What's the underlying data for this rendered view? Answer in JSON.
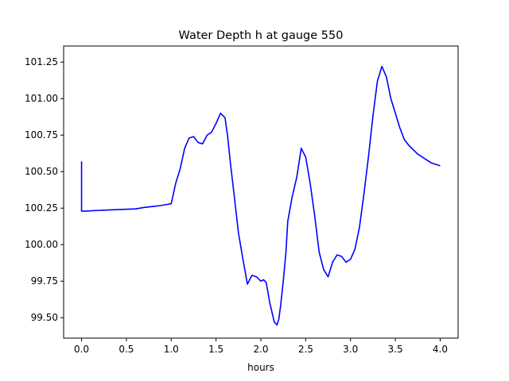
{
  "chart_data": {
    "type": "line",
    "title": "Water Depth h at gauge 550",
    "xlabel": "hours",
    "ylabel": "",
    "xlim": [
      -0.2,
      4.2
    ],
    "ylim": [
      99.36,
      101.36
    ],
    "grid": false,
    "xticks": [
      0.0,
      0.5,
      1.0,
      1.5,
      2.0,
      2.5,
      3.0,
      3.5,
      4.0
    ],
    "xtick_labels": [
      "0.0",
      "0.5",
      "1.0",
      "1.5",
      "2.0",
      "2.5",
      "3.0",
      "3.5",
      "4.0"
    ],
    "yticks": [
      99.5,
      99.75,
      100.0,
      100.25,
      100.5,
      100.75,
      101.0,
      101.25
    ],
    "ytick_labels": [
      "99.50",
      "99.75",
      "100.00",
      "100.25",
      "100.50",
      "100.75",
      "101.00",
      "101.25"
    ],
    "series": [
      {
        "color": "#0000ff",
        "x": [
          0.0,
          0.0,
          0.0,
          0.05,
          0.2,
          0.4,
          0.6,
          0.7,
          0.85,
          0.95,
          1.0,
          1.05,
          1.1,
          1.15,
          1.2,
          1.25,
          1.3,
          1.35,
          1.4,
          1.45,
          1.5,
          1.55,
          1.6,
          1.63,
          1.66,
          1.7,
          1.75,
          1.8,
          1.85,
          1.9,
          1.95,
          2.0,
          2.03,
          2.06,
          2.1,
          2.15,
          2.18,
          2.2,
          2.22,
          2.25,
          2.28,
          2.3,
          2.35,
          2.4,
          2.45,
          2.5,
          2.55,
          2.6,
          2.65,
          2.7,
          2.75,
          2.8,
          2.85,
          2.9,
          2.95,
          3.0,
          3.05,
          3.1,
          3.15,
          3.2,
          3.25,
          3.3,
          3.35,
          3.4,
          3.45,
          3.5,
          3.55,
          3.6,
          3.65,
          3.7,
          3.75,
          3.8,
          3.85,
          3.9,
          3.95,
          4.0
        ],
        "y": [
          100.57,
          100.4,
          100.23,
          100.23,
          100.235,
          100.24,
          100.245,
          100.255,
          100.265,
          100.275,
          100.28,
          100.42,
          100.52,
          100.66,
          100.73,
          100.74,
          100.7,
          100.69,
          100.75,
          100.77,
          100.83,
          100.9,
          100.87,
          100.74,
          100.56,
          100.35,
          100.08,
          99.9,
          99.73,
          99.79,
          99.78,
          99.75,
          99.76,
          99.74,
          99.6,
          99.47,
          99.45,
          99.49,
          99.58,
          99.75,
          99.95,
          100.16,
          100.33,
          100.46,
          100.66,
          100.6,
          100.42,
          100.2,
          99.95,
          99.83,
          99.78,
          99.88,
          99.93,
          99.92,
          99.88,
          99.9,
          99.97,
          100.12,
          100.35,
          100.6,
          100.88,
          101.12,
          101.22,
          101.15,
          101.0,
          100.9,
          100.8,
          100.72,
          100.68,
          100.65,
          100.62,
          100.6,
          100.58,
          100.56,
          100.55,
          100.54
        ]
      }
    ]
  }
}
